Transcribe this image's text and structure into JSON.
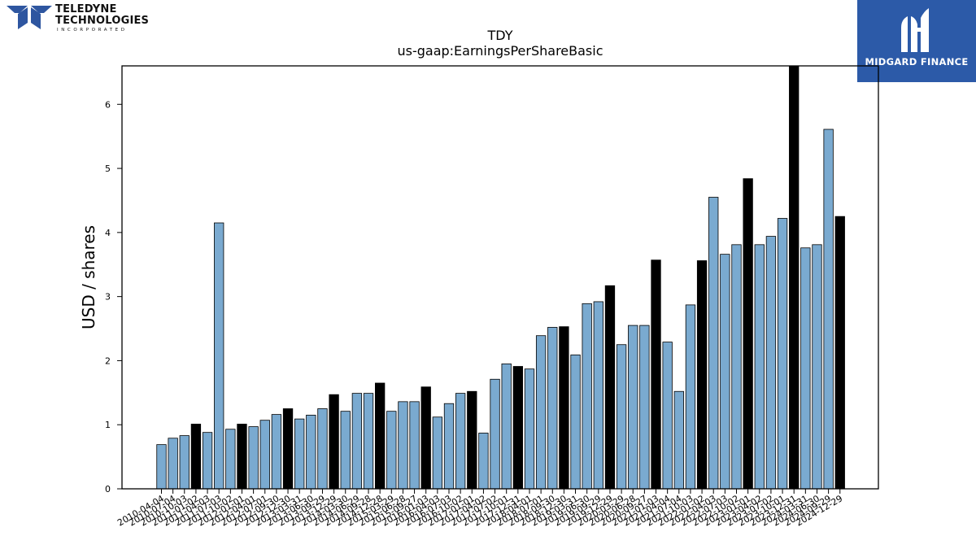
{
  "logo": {
    "line1": "TELEDYNE",
    "line2": "TECHNOLOGIES",
    "line3": "INCORPORATED",
    "icon": "teledyne-chevron-logo-icon",
    "color": "#2e56a0"
  },
  "badge": {
    "text": "MIDGARD FINANCE",
    "icon": "midgard-m-logo-icon",
    "background": "#2c5aa8"
  },
  "colors": {
    "bar_default": "#7aaad0",
    "bar_highlight": "#000000",
    "bar_edge": "#000000"
  },
  "chart_data": {
    "type": "bar",
    "title": "TDY",
    "subtitle": "us-gaap:EarningsPerShareBasic",
    "xlabel": "",
    "ylabel": "USD / shares",
    "ylim": [
      0,
      6.6
    ],
    "yticks": [
      0,
      1,
      2,
      3,
      4,
      5,
      6
    ],
    "grid": false,
    "legend": "none",
    "x_tick_labels": [
      "2010-04-04",
      "2010-07-04",
      "2010-10-03",
      "2011-01-02",
      "2011-04-03",
      "2011-07-03",
      "2011-10-02",
      "2012-01-01",
      "2012-04-01",
      "2012-07-01",
      "2012-09-30",
      "2012-12-30",
      "2013-03-31",
      "2013-06-30",
      "2013-09-29",
      "2013-12-29",
      "2014-03-30",
      "2014-06-29",
      "2014-09-28",
      "2014-12-28",
      "2015-03-29",
      "2015-06-28",
      "2015-09-27",
      "2016-01-03",
      "2016-04-03",
      "2016-07-03",
      "2016-10-02",
      "2017-01-01",
      "2017-04-02",
      "2017-07-02",
      "2017-10-01",
      "2017-12-31",
      "2018-04-01",
      "2018-07-01",
      "2018-09-30",
      "2018-12-30",
      "2019-03-31",
      "2019-06-30",
      "2019-09-29",
      "2019-12-29",
      "2020-03-29",
      "2020-06-28",
      "2020-09-27",
      "2021-01-03",
      "2021-04-04",
      "2021-07-04",
      "2021-10-03",
      "2022-01-02",
      "2022-04-03",
      "2022-07-03",
      "2022-10-02",
      "2023-01-01",
      "2023-04-02",
      "2023-07-02",
      "2023-10-01",
      "2023-12-31",
      "2024-03-31",
      "2024-06-30",
      "2024-09-29",
      "2024-12-29"
    ],
    "tick_rotation_deg": 30,
    "values": [
      0.69,
      0.79,
      0.83,
      1.01,
      0.88,
      4.15,
      0.93,
      1.01,
      0.97,
      1.07,
      1.16,
      1.25,
      1.09,
      1.15,
      1.25,
      1.47,
      1.21,
      1.49,
      1.49,
      1.65,
      1.21,
      1.36,
      1.36,
      1.59,
      1.12,
      1.33,
      1.49,
      1.52,
      0.87,
      1.71,
      1.95,
      1.91,
      1.87,
      2.39,
      2.52,
      2.53,
      2.09,
      2.89,
      2.92,
      3.17,
      2.25,
      2.55,
      2.55,
      3.57,
      2.29,
      1.52,
      2.87,
      3.56,
      4.55,
      3.66,
      3.81,
      4.84,
      3.81,
      3.94,
      4.22,
      6.6,
      3.76,
      3.81,
      5.61,
      4.25
    ],
    "highlight": [
      false,
      false,
      false,
      true,
      false,
      false,
      false,
      true,
      false,
      false,
      false,
      true,
      false,
      false,
      false,
      true,
      false,
      false,
      false,
      true,
      false,
      false,
      false,
      true,
      false,
      false,
      false,
      true,
      false,
      false,
      false,
      true,
      false,
      false,
      false,
      true,
      false,
      false,
      false,
      true,
      false,
      false,
      false,
      true,
      false,
      false,
      false,
      true,
      false,
      false,
      false,
      true,
      false,
      false,
      false,
      true,
      false,
      false,
      false,
      true
    ]
  }
}
